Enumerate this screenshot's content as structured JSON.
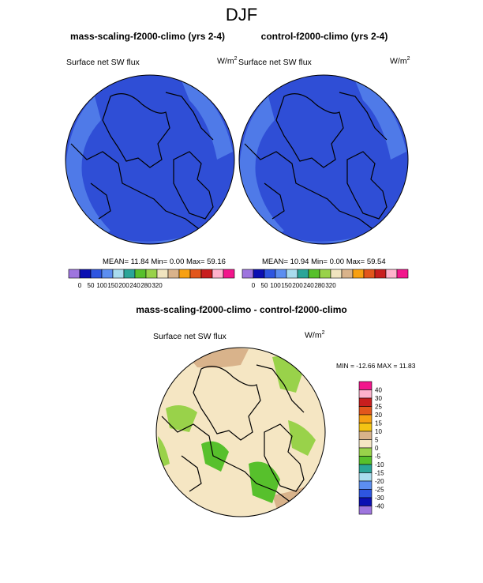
{
  "figure_title": "DJF",
  "colors": {
    "ocean_blue": "#2f4ed6",
    "coast_blue": "#4f7ae8",
    "land_line": "#000000",
    "diff_base": "#f5e6c3"
  },
  "chart_data": [
    {
      "type": "heatmap",
      "projection": "north-polar-stereographic",
      "title": "mass-scaling-f2000-climo (yrs 2-4)",
      "left_label": "Surface net SW flux",
      "units_label": "W/m",
      "units_exp": "2",
      "stats": {
        "mean_label": "MEAN=",
        "mean": "11.84",
        "min_label": "Min=",
        "min": "0.00",
        "max_label": "Max=",
        "max": "59.16"
      },
      "colorbar": {
        "orientation": "horizontal",
        "colors": [
          "#9e75de",
          "#0b0fb2",
          "#2e55e0",
          "#5c8ef0",
          "#a9dcee",
          "#2aa598",
          "#57c02c",
          "#99d24a",
          "#f0e4bf",
          "#d9b38b",
          "#f7a012",
          "#e2561c",
          "#c81e1e",
          "#ffb2cc",
          "#f2168c"
        ],
        "ticks": [
          "0",
          "50",
          "100",
          "150",
          "200",
          "240",
          "280",
          "320"
        ]
      }
    },
    {
      "type": "heatmap",
      "projection": "north-polar-stereographic",
      "title": "control-f2000-climo (yrs 2-4)",
      "left_label": "Surface net SW flux",
      "units_label": "W/m",
      "units_exp": "2",
      "stats": {
        "mean_label": "MEAN=",
        "mean": "10.94",
        "min_label": "Min=",
        "min": "0.00",
        "max_label": "Max=",
        "max": "59.54"
      },
      "colorbar": {
        "orientation": "horizontal",
        "colors": [
          "#9e75de",
          "#0b0fb2",
          "#2e55e0",
          "#5c8ef0",
          "#a9dcee",
          "#2aa598",
          "#57c02c",
          "#99d24a",
          "#f0e4bf",
          "#d9b38b",
          "#f7a012",
          "#e2561c",
          "#c81e1e",
          "#ffb2cc",
          "#f2168c"
        ],
        "ticks": [
          "0",
          "50",
          "100",
          "150",
          "200",
          "240",
          "280",
          "320"
        ]
      }
    },
    {
      "type": "heatmap",
      "projection": "north-polar-stereographic",
      "title": "mass-scaling-f2000-climo - control-f2000-climo",
      "left_label": "Surface net SW flux",
      "units_label": "W/m",
      "units_exp": "2",
      "stats_text": "MIN = -12.66 MAX =  11.83",
      "colorbar": {
        "orientation": "vertical",
        "colors_top_to_bottom": [
          "#f2168c",
          "#ffb2cc",
          "#c81e1e",
          "#e2561c",
          "#f7a012",
          "#f4c414",
          "#d9b38b",
          "#f5e6c3",
          "#99d24a",
          "#57c02c",
          "#2aa598",
          "#a9dcee",
          "#5c8ef0",
          "#2e55e0",
          "#0b0fb2",
          "#9e75de"
        ],
        "ticks_top_to_bottom": [
          "40",
          "30",
          "25",
          "20",
          "15",
          "10",
          "5",
          "0",
          "-5",
          "-10",
          "-15",
          "-20",
          "-25",
          "-30",
          "-40"
        ]
      }
    }
  ]
}
